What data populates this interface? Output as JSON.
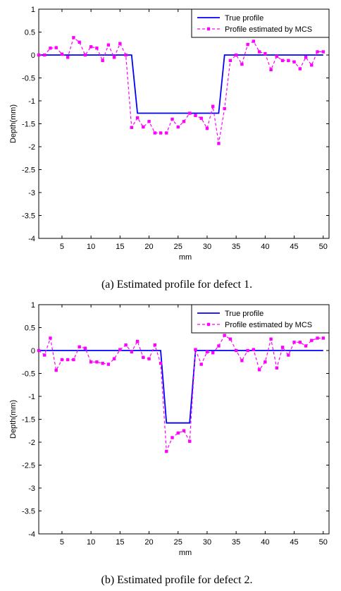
{
  "chart_data": [
    {
      "type": "line",
      "caption": "(a) Estimated profile for defect 1.",
      "xlabel": "mm",
      "ylabel": "Depth(mm)",
      "xlim": [
        1,
        51
      ],
      "ylim": [
        -4,
        1
      ],
      "x_ticks": [
        "5",
        "10",
        "15",
        "20",
        "25",
        "30",
        "35",
        "40",
        "45",
        "50"
      ],
      "y_ticks": [
        "1",
        "0.5",
        "0",
        "-0.5",
        "-1",
        "-1.5",
        "-2",
        "-2.5",
        "-3",
        "-3.5",
        "-4"
      ],
      "legend_position": "top-right",
      "grid": false,
      "series": [
        {
          "name": "True profile",
          "color": "#0000ff",
          "style": "solid",
          "x": [
            1,
            17,
            18,
            32,
            33,
            50
          ],
          "y": [
            0,
            0,
            -1.27,
            -1.27,
            0,
            0
          ]
        },
        {
          "name": "Profile estimated by MCS",
          "color": "#ff00ff",
          "style": "dashed-square-markers",
          "x": [
            1,
            2,
            3,
            4,
            5,
            6,
            7,
            8,
            9,
            10,
            11,
            12,
            13,
            14,
            15,
            16,
            17,
            18,
            19,
            20,
            21,
            22,
            23,
            24,
            25,
            26,
            27,
            28,
            29,
            30,
            31,
            32,
            33,
            34,
            35,
            36,
            37,
            38,
            39,
            40,
            41,
            42,
            43,
            44,
            45,
            46,
            47,
            48,
            49,
            50
          ],
          "y": [
            0.0,
            0.0,
            0.15,
            0.16,
            0.02,
            -0.05,
            0.38,
            0.28,
            0.0,
            0.18,
            0.15,
            -0.12,
            0.22,
            -0.05,
            0.25,
            0.0,
            -1.58,
            -1.37,
            -1.57,
            -1.45,
            -1.7,
            -1.7,
            -1.7,
            -1.4,
            -1.57,
            -1.45,
            -1.27,
            -1.32,
            -1.38,
            -1.6,
            -1.12,
            -1.93,
            -1.17,
            -0.12,
            0.0,
            -0.2,
            0.23,
            0.3,
            0.07,
            0.03,
            -0.32,
            -0.03,
            -0.12,
            -0.12,
            -0.15,
            -0.3,
            -0.05,
            -0.22,
            0.07,
            0.07
          ]
        }
      ]
    },
    {
      "type": "line",
      "caption": "(b) Estimated profile for defect 2.",
      "xlabel": "mm",
      "ylabel": "Depth(mm)",
      "xlim": [
        1,
        51
      ],
      "ylim": [
        -4,
        1
      ],
      "x_ticks": [
        "5",
        "10",
        "15",
        "20",
        "25",
        "30",
        "35",
        "40",
        "45",
        "50"
      ],
      "y_ticks": [
        "1",
        "0.5",
        "0",
        "-0.5",
        "-1",
        "-1.5",
        "-2",
        "-2.5",
        "-3",
        "-3.5",
        "-4"
      ],
      "legend_position": "top-right",
      "grid": false,
      "series": [
        {
          "name": "True profile",
          "color": "#0000ff",
          "style": "solid",
          "x": [
            1,
            22,
            23,
            27,
            28,
            50
          ],
          "y": [
            0,
            0,
            -1.58,
            -1.58,
            0,
            0
          ]
        },
        {
          "name": "Profile estimated by MCS",
          "color": "#ff00ff",
          "style": "dashed-square-markers",
          "x": [
            1,
            2,
            3,
            4,
            5,
            6,
            7,
            8,
            9,
            10,
            11,
            12,
            13,
            14,
            15,
            16,
            17,
            18,
            19,
            20,
            21,
            22,
            23,
            24,
            25,
            26,
            27,
            28,
            29,
            30,
            31,
            32,
            33,
            34,
            35,
            36,
            37,
            38,
            39,
            40,
            41,
            42,
            43,
            44,
            45,
            46,
            47,
            48,
            49,
            50
          ],
          "y": [
            0.0,
            -0.1,
            0.27,
            -0.43,
            -0.2,
            -0.2,
            -0.2,
            0.08,
            0.05,
            -0.25,
            -0.25,
            -0.28,
            -0.3,
            -0.18,
            0.02,
            0.12,
            -0.03,
            0.2,
            -0.15,
            -0.18,
            0.12,
            -0.28,
            -2.2,
            -1.9,
            -1.8,
            -1.75,
            -1.98,
            0.02,
            -0.3,
            -0.03,
            -0.05,
            0.1,
            0.33,
            0.25,
            0.0,
            -0.22,
            0.0,
            0.02,
            -0.42,
            -0.25,
            0.25,
            -0.38,
            0.07,
            -0.1,
            0.18,
            0.18,
            0.1,
            0.22,
            0.27,
            0.27
          ]
        }
      ]
    }
  ]
}
